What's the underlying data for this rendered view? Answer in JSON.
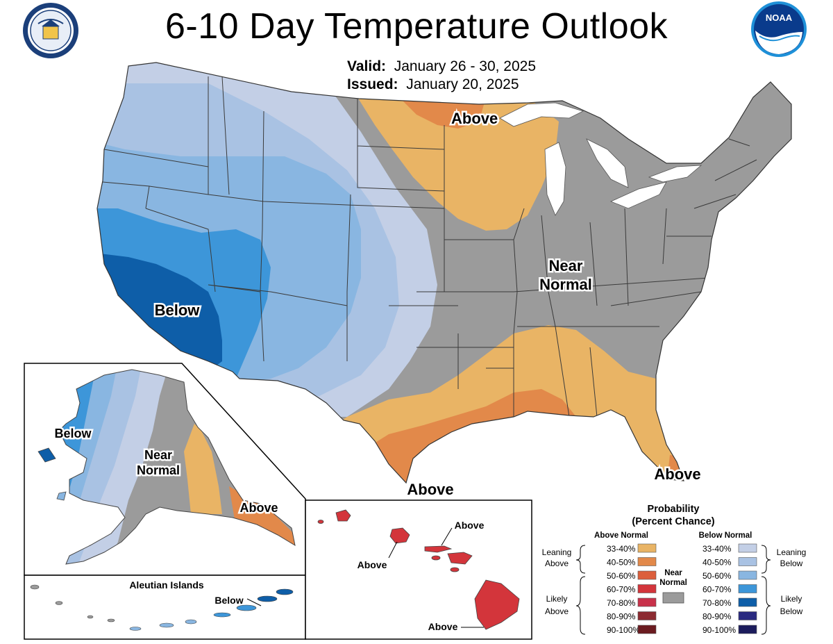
{
  "title": "6-10 Day Temperature Outlook",
  "valid": {
    "label": "Valid:",
    "value": "January 26 - 30, 2025"
  },
  "issued": {
    "label": "Issued:",
    "value": "January 20, 2025"
  },
  "logos": {
    "left": {
      "icon": "commerce-seal-icon",
      "text": "DEPARTMENT OF COMMERCE • UNITED STATES OF AMERICA"
    },
    "right": {
      "icon": "noaa-logo-icon",
      "text": "NOAA"
    }
  },
  "regions": {
    "conus_above_north": "Above",
    "conus_near_normal": [
      "Near",
      "Normal"
    ],
    "conus_below": "Below",
    "conus_above_texas": "Above",
    "conus_above_florida": "Above",
    "alaska_below": "Below",
    "alaska_near_normal": [
      "Near",
      "Normal"
    ],
    "alaska_above": "Above",
    "aleutian_title": "Aleutian Islands",
    "aleutian_below": "Below",
    "hawaii_above_1": "Above",
    "hawaii_above_2": "Above",
    "hawaii_above_3": "Above"
  },
  "legend": {
    "title": [
      "Probability",
      "(Percent Chance)"
    ],
    "above_header": "Above Normal",
    "below_header": "Below Normal",
    "near_normal": [
      "Near",
      "Normal"
    ],
    "leaning_above": [
      "Leaning",
      "Above"
    ],
    "likely_above": [
      "Likely",
      "Above"
    ],
    "leaning_below": [
      "Leaning",
      "Below"
    ],
    "likely_below": [
      "Likely",
      "Below"
    ],
    "ranges": [
      "33-40%",
      "40-50%",
      "50-60%",
      "60-70%",
      "70-80%",
      "80-90%",
      "90-100%"
    ],
    "above_colors": [
      "#e9b465",
      "#e2894a",
      "#dc5f3c",
      "#d3353b",
      "#c8314a",
      "#8c2b31",
      "#6b1b20"
    ],
    "below_colors": [
      "#c3cfe6",
      "#a9c2e3",
      "#89b6e1",
      "#3d96d9",
      "#0e5ea8",
      "#2a2a80",
      "#1c1c5c"
    ],
    "near_color": "#9b9b9b"
  },
  "colors": {
    "near_normal": "#9b9b9b",
    "above_33_40": "#e9b465",
    "above_40_50": "#e2894a",
    "above_60_70": "#d3353b",
    "below_33_40": "#c3cfe6",
    "below_40_50": "#a9c2e3",
    "below_50_60": "#89b6e1",
    "below_60_70": "#3d96d9",
    "below_70_80": "#0e5ea8"
  }
}
